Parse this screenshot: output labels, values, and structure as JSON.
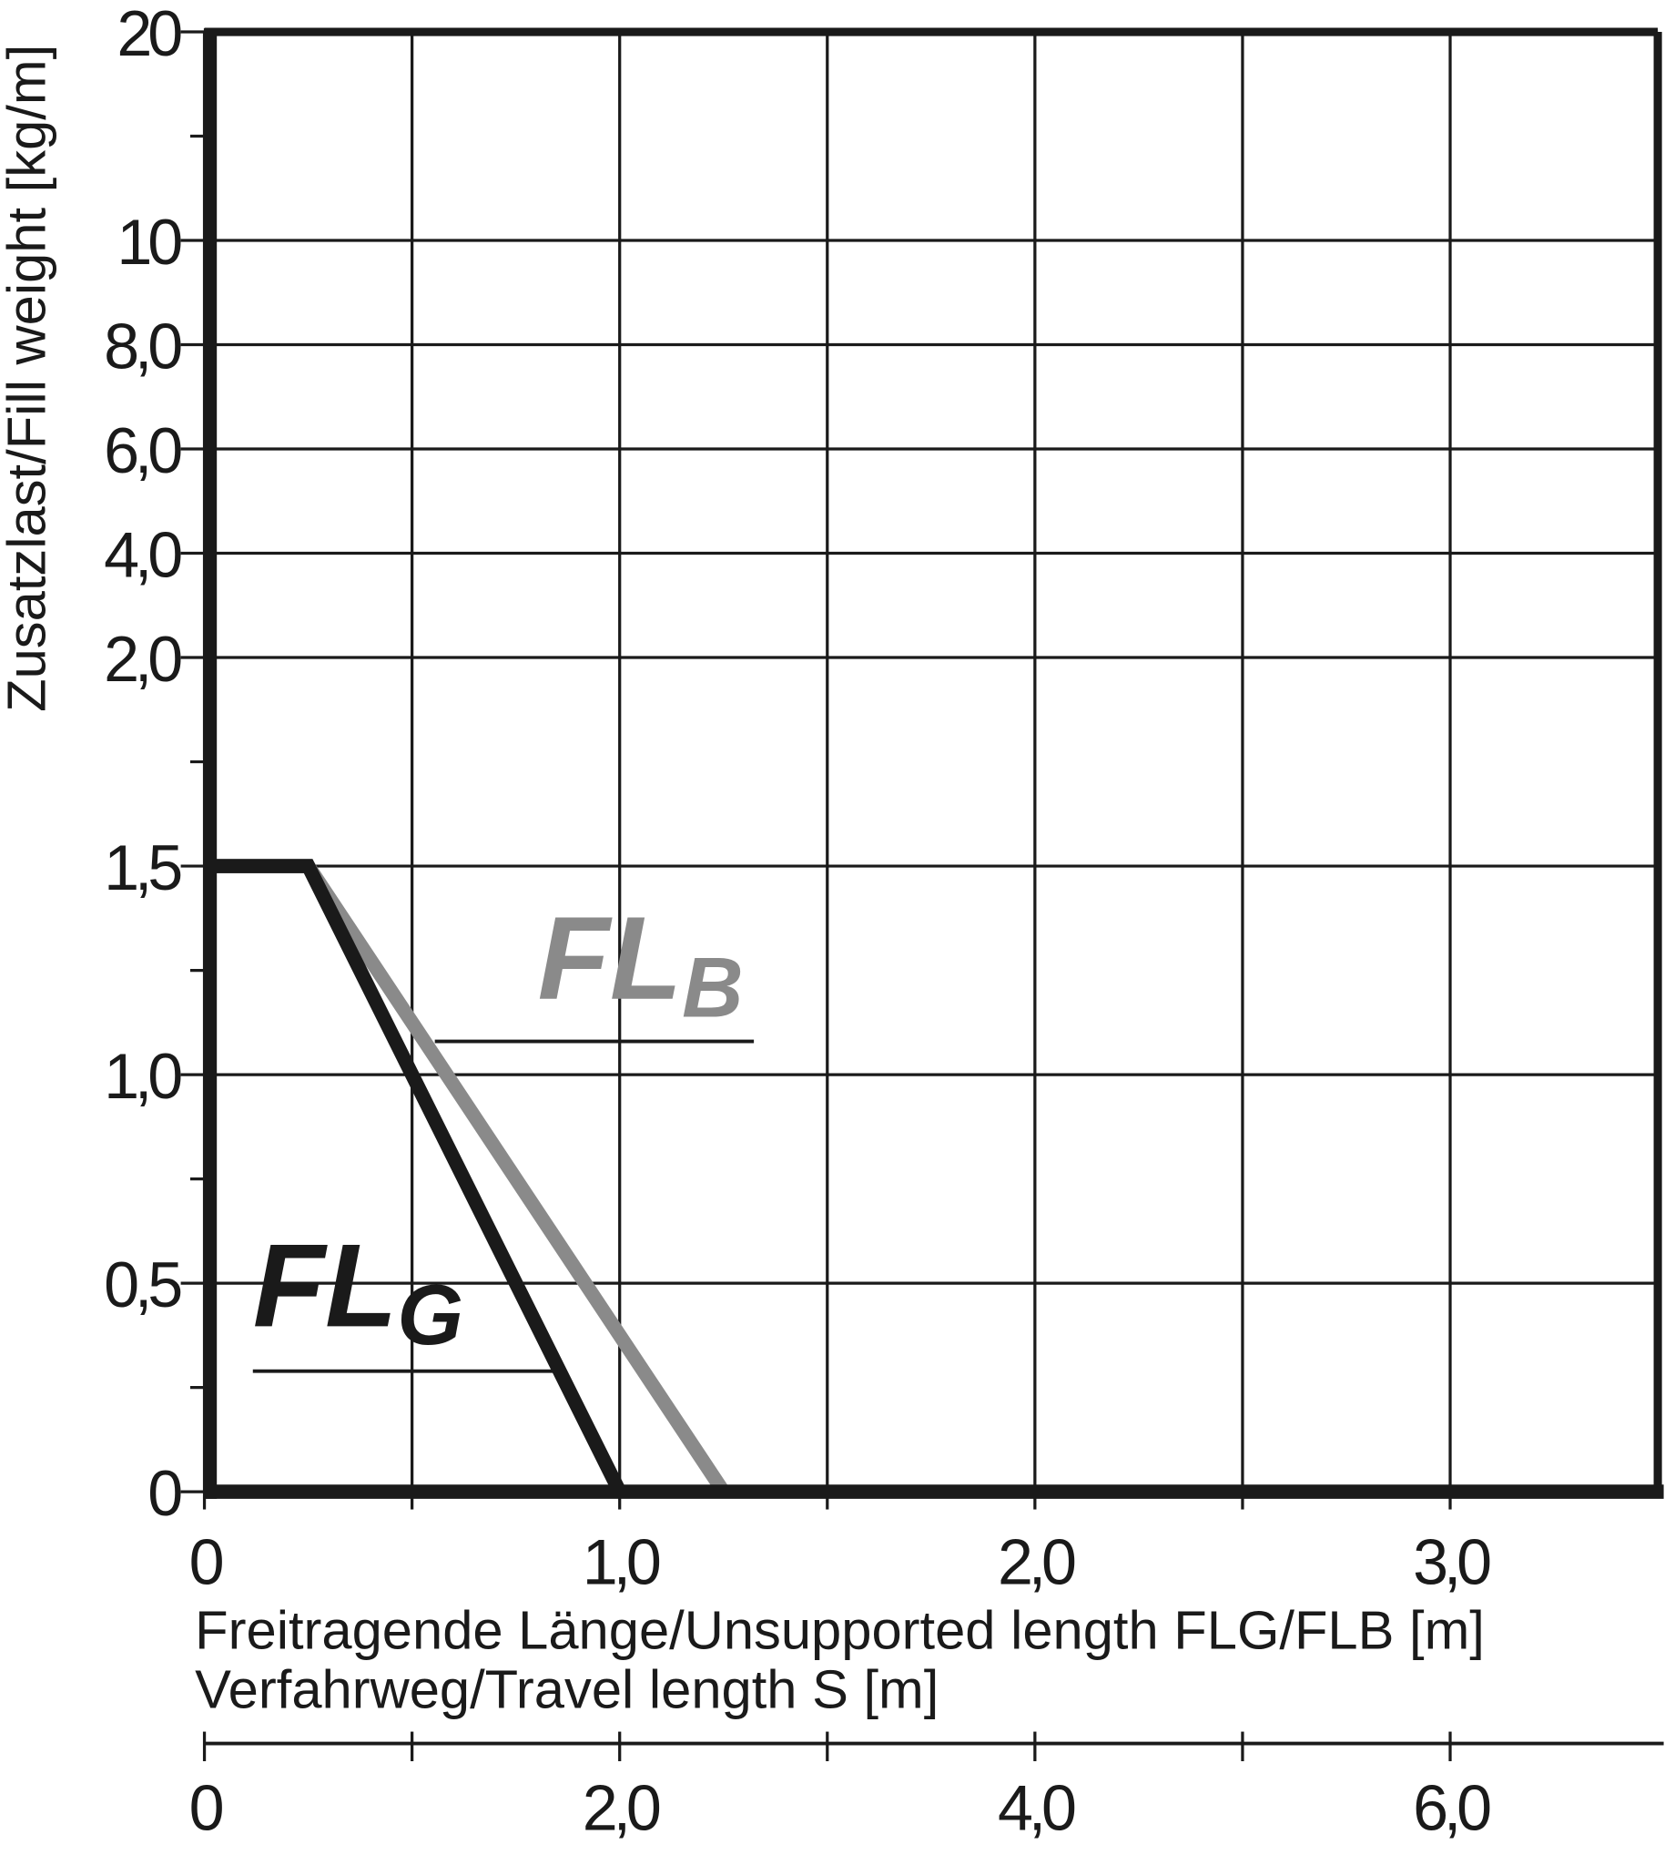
{
  "chart_data": {
    "type": "line",
    "y_label": "Zusatzlast/Fill weight [kg/m]",
    "x_label": "Freitragende Länge/Unsupported length FLG/FLB [m]",
    "x2_label": "Verfahrweg/Travel length S [m]",
    "xlim": [
      0,
      3.5
    ],
    "xticks": [
      0,
      {
        "value": 1.0,
        "label": "1,0"
      },
      {
        "value": 2.0,
        "label": "2,0"
      },
      {
        "value": 3.0,
        "label": "3,0"
      }
    ],
    "xminorticks": [
      0.5,
      1.5,
      2.5
    ],
    "x2lim": [
      0,
      7
    ],
    "x2ticks": [
      0,
      {
        "value": 2.0,
        "label": "2,0"
      },
      {
        "value": 4.0,
        "label": "4,0"
      },
      {
        "value": 6.0,
        "label": "6,0"
      }
    ],
    "x2minorticks": [
      1,
      3,
      5
    ],
    "ylim": [
      0,
      20
    ],
    "yscale": "piecewise",
    "yticks": [
      0,
      {
        "value": 0.5,
        "label": "0,5"
      },
      {
        "value": 1.0,
        "label": "1,0"
      },
      {
        "value": 1.5,
        "label": "1,5"
      },
      {
        "value": 2.0,
        "label": "2,0"
      },
      {
        "value": 4.0,
        "label": "4,0"
      },
      {
        "value": 6.0,
        "label": "6,0"
      },
      {
        "value": 8.0,
        "label": "8,0"
      },
      10,
      20
    ],
    "yminorticks": [
      0.25,
      0.75,
      1.25,
      1.75,
      15
    ],
    "grid": true,
    "series": [
      {
        "label": [
          "FL",
          "B"
        ],
        "color": "#8a8a8a",
        "x": [
          0,
          0.25,
          1.25
        ],
        "values": [
          1.5,
          1.5,
          0
        ]
      },
      {
        "label": [
          "FL",
          "G"
        ],
        "color": "#1a1a1a",
        "x": [
          0,
          0.25,
          1.0
        ],
        "values": [
          1.5,
          1.5,
          0
        ]
      }
    ]
  }
}
